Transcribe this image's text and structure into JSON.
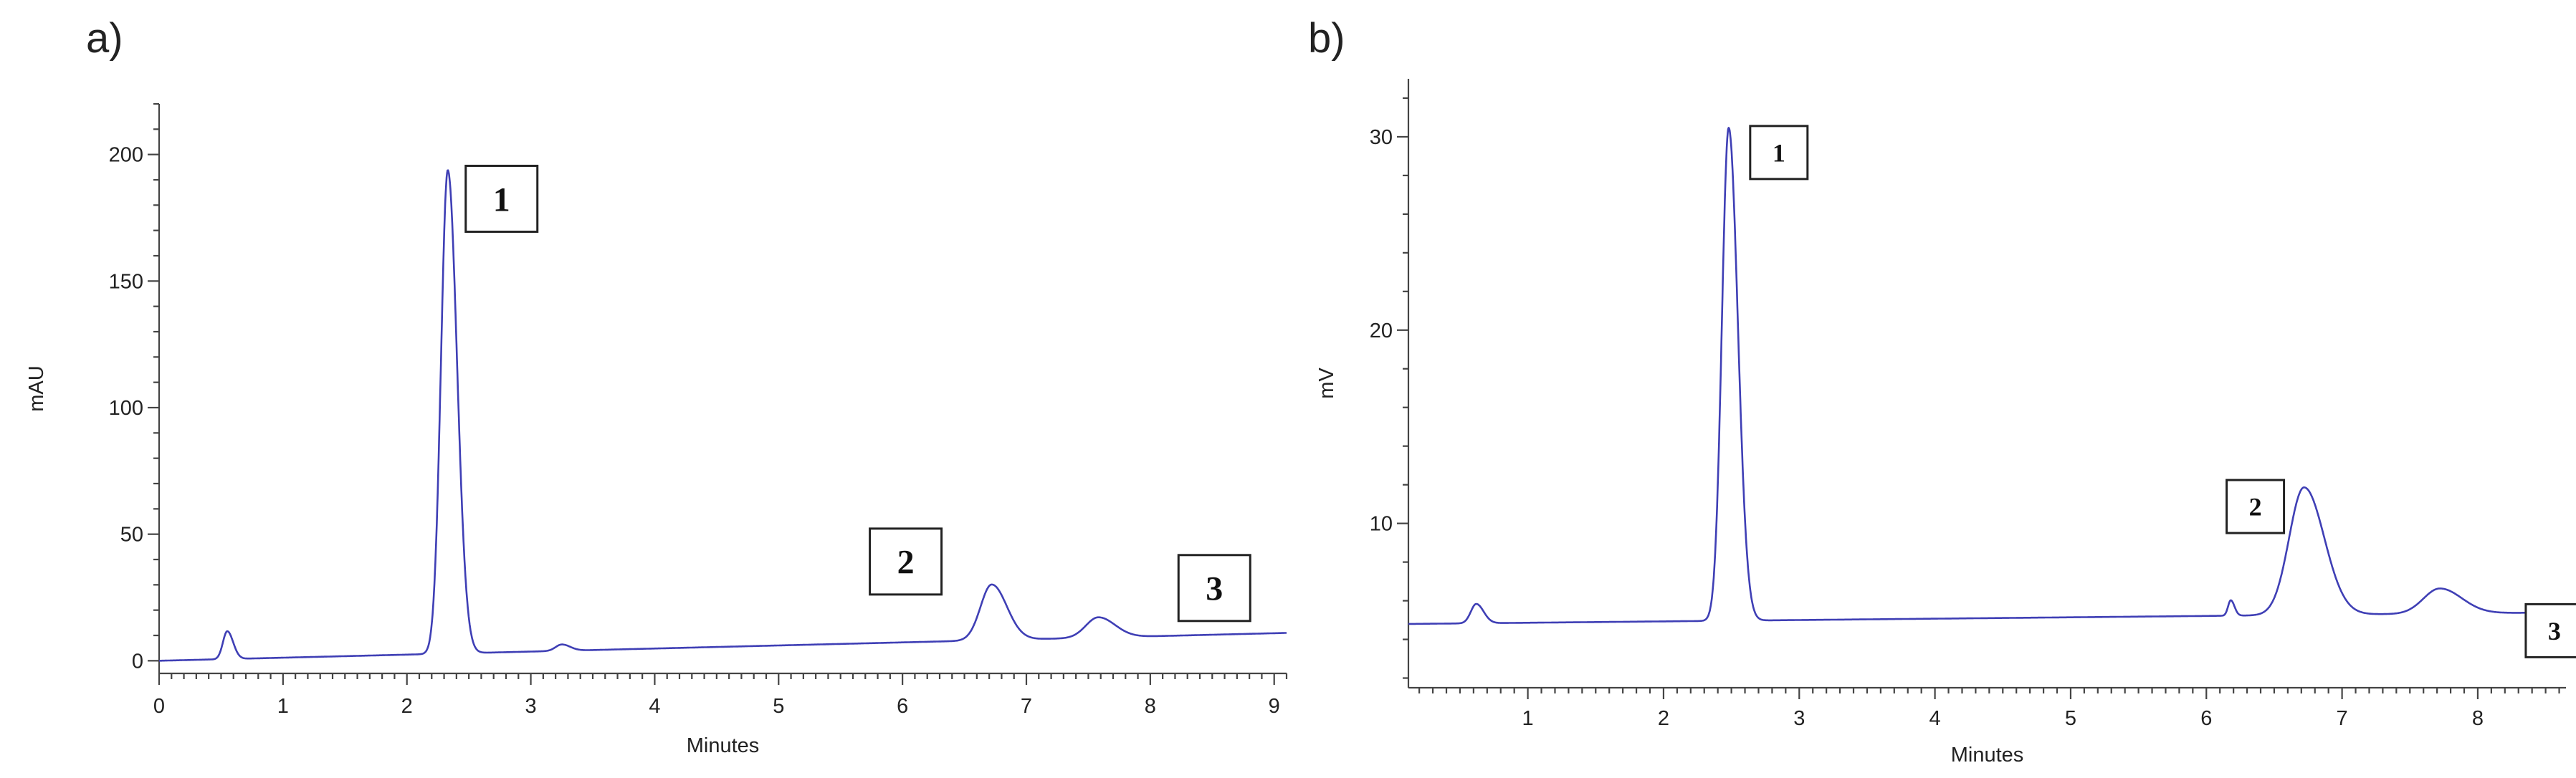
{
  "panels": [
    {
      "tag": "a)"
    },
    {
      "tag": "b)"
    }
  ],
  "colors": {
    "trace": "#3f3fb5",
    "axis": "#444444"
  },
  "chart_data": [
    {
      "type": "line",
      "panel": "a)",
      "xlabel": "Minutes",
      "ylabel": "mAU",
      "xlim": [
        0,
        9.1
      ],
      "ylim": [
        -5,
        220
      ],
      "xticks": [
        0,
        1,
        2,
        3,
        4,
        5,
        6,
        7,
        8,
        9
      ],
      "yticks": [
        0,
        50,
        100,
        150,
        200
      ],
      "grid": false,
      "baseline": {
        "start": 0,
        "end": 11
      },
      "peaks": [
        {
          "x": 0.55,
          "height": 11,
          "width": 0.035
        },
        {
          "x": 2.33,
          "height": 191,
          "width": 0.055
        },
        {
          "x": 3.25,
          "height": 2.5,
          "width": 0.05
        },
        {
          "x": 6.72,
          "height": 22,
          "width": 0.09
        },
        {
          "x": 7.58,
          "height": 8,
          "width": 0.1
        }
      ],
      "peak_labels": [
        {
          "label": "1",
          "x": 2.33,
          "y": 191
        },
        {
          "label": "2",
          "x": 6.72,
          "y": 29
        },
        {
          "label": "3",
          "x": 7.58,
          "y": 16
        }
      ]
    },
    {
      "type": "line",
      "panel": "b)",
      "xlabel": "Minutes",
      "ylabel": "mV",
      "xlim": [
        0.12,
        8.65
      ],
      "ylim": [
        1.5,
        33
      ],
      "xticks": [
        1,
        2,
        3,
        4,
        5,
        6,
        7,
        8
      ],
      "yticks": [
        10,
        20,
        30
      ],
      "grid": false,
      "baseline": {
        "start": 4.8,
        "end": 5.4
      },
      "peaks": [
        {
          "x": 0.62,
          "height": 1.0,
          "width": 0.04
        },
        {
          "x": 2.48,
          "height": 25.5,
          "width": 0.05
        },
        {
          "x": 6.18,
          "height": 0.8,
          "width": 0.02
        },
        {
          "x": 6.72,
          "height": 6.6,
          "width": 0.11
        },
        {
          "x": 7.72,
          "height": 1.3,
          "width": 0.12
        }
      ],
      "peak_labels": [
        {
          "label": "1",
          "x": 2.48,
          "y": 30.3
        },
        {
          "label": "2",
          "x": 6.72,
          "y": 11.8
        },
        {
          "label": "3",
          "x": 7.72,
          "y": 6.6
        }
      ]
    }
  ]
}
